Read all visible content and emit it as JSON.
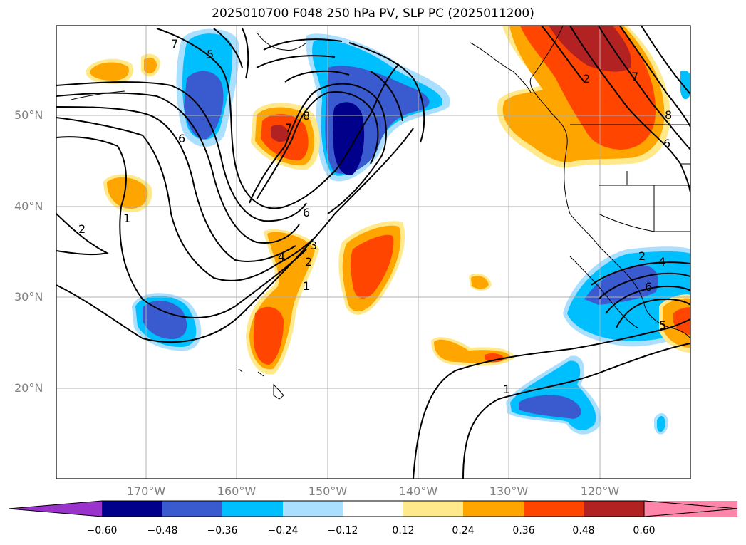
{
  "title": "2025010700 F048 250 hPa PV, SLP PC (2025011200)",
  "lat_labels": [
    "50°N",
    "40°N",
    "30°N",
    "20°N"
  ],
  "lon_labels": [
    "170°W",
    "160°W",
    "150°W",
    "140°W",
    "130°W",
    "120°W"
  ],
  "contour_labels": [
    "7",
    "5",
    "6",
    "8",
    "7",
    "6",
    "2",
    "1",
    "4",
    "3",
    "2",
    "1",
    "1",
    "2",
    "7",
    "6",
    "8",
    "2",
    "4",
    "6",
    "5"
  ],
  "colorbar": {
    "labels": [
      "−0.60",
      "−0.48",
      "−0.36",
      "−0.24",
      "−0.12",
      "0.12",
      "0.24",
      "0.36",
      "0.48",
      "0.60"
    ],
    "colors": [
      "#9933cc",
      "#00008b",
      "#3a5bd0",
      "#00bfff",
      "#aadfff",
      "#ffffff",
      "#ffe98a",
      "#ffa500",
      "#ff4500",
      "#b22222",
      "#ff85aa"
    ]
  },
  "palette": {
    "neg1": "#aadfff",
    "neg2": "#00bfff",
    "neg3": "#3a5bd0",
    "neg4": "#00008b",
    "pos1": "#ffe98a",
    "pos2": "#ffa500",
    "pos3": "#ff4500",
    "pos4": "#b22222",
    "grid": "#b0b0b0",
    "line": "#000000"
  }
}
